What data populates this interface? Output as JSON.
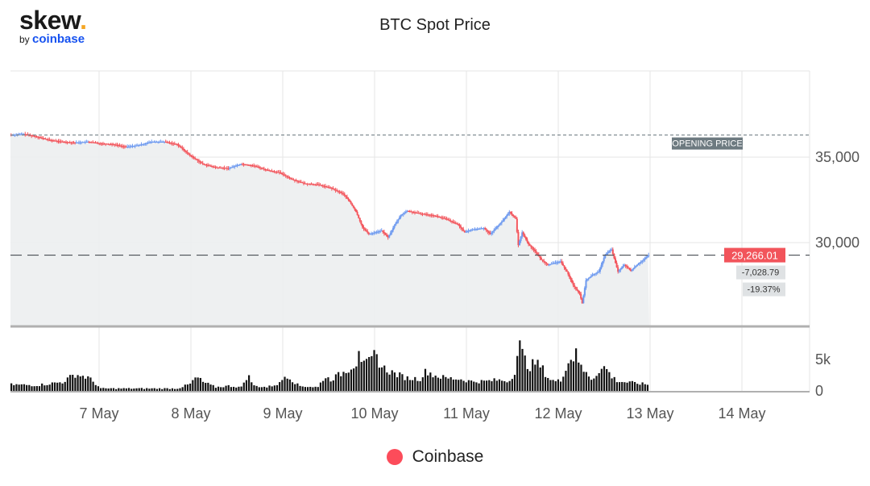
{
  "logo": {
    "main": "skew",
    "dot": ".",
    "by": "by",
    "brand": "coinbase"
  },
  "chart_data": {
    "type": "candlestick",
    "title": "BTC Spot Price",
    "x_labels": [
      "7 May",
      "8 May",
      "9 May",
      "10 May",
      "11 May",
      "12 May",
      "13 May",
      "14 May"
    ],
    "y_ticks": [
      30000,
      35000
    ],
    "y_tick_labels": [
      "30,000",
      "35,000"
    ],
    "ylim": [
      25000,
      40000
    ],
    "volume_tick_labels": [
      "5k",
      "0"
    ],
    "grid": true,
    "opening_price_label": "OPENING PRICE",
    "opening_price": 36295,
    "last_price": 29266.01,
    "last_price_label": "29,266.01",
    "change_label": "-7,028.79",
    "change_pct_label": "-19.37%",
    "legend_position": "bottom-center",
    "price_anchors": [
      [
        0,
        36300
      ],
      [
        10,
        36350
      ],
      [
        20,
        36200
      ],
      [
        30,
        36000
      ],
      [
        40,
        35900
      ],
      [
        50,
        35850
      ],
      [
        60,
        35900
      ],
      [
        70,
        35800
      ],
      [
        80,
        35750
      ],
      [
        90,
        35600
      ],
      [
        100,
        35700
      ],
      [
        110,
        35900
      ],
      [
        120,
        35900
      ],
      [
        130,
        35750
      ],
      [
        140,
        35100
      ],
      [
        150,
        34600
      ],
      [
        160,
        34400
      ],
      [
        170,
        34350
      ],
      [
        180,
        34600
      ],
      [
        190,
        34500
      ],
      [
        200,
        34250
      ],
      [
        210,
        34100
      ],
      [
        220,
        33700
      ],
      [
        230,
        33450
      ],
      [
        240,
        33400
      ],
      [
        250,
        33200
      ],
      [
        260,
        32850
      ],
      [
        265,
        32400
      ],
      [
        270,
        31800
      ],
      [
        275,
        30900
      ],
      [
        280,
        30500
      ],
      [
        290,
        30700
      ],
      [
        295,
        30300
      ],
      [
        300,
        31000
      ],
      [
        305,
        31600
      ],
      [
        310,
        31850
      ],
      [
        320,
        31700
      ],
      [
        330,
        31600
      ],
      [
        340,
        31400
      ],
      [
        350,
        31050
      ],
      [
        355,
        30600
      ],
      [
        360,
        30750
      ],
      [
        370,
        30850
      ],
      [
        375,
        30500
      ],
      [
        385,
        31300
      ],
      [
        390,
        31800
      ],
      [
        395,
        31400
      ],
      [
        397,
        29850
      ],
      [
        400,
        30600
      ],
      [
        405,
        29900
      ],
      [
        410,
        29500
      ],
      [
        415,
        29000
      ],
      [
        420,
        28700
      ],
      [
        425,
        28800
      ],
      [
        430,
        28900
      ],
      [
        435,
        28300
      ],
      [
        440,
        27500
      ],
      [
        445,
        27000
      ],
      [
        447,
        26450
      ],
      [
        450,
        27800
      ],
      [
        455,
        28100
      ],
      [
        460,
        28300
      ],
      [
        465,
        29300
      ],
      [
        470,
        29600
      ],
      [
        475,
        28300
      ],
      [
        480,
        28700
      ],
      [
        485,
        28350
      ],
      [
        490,
        28700
      ],
      [
        495,
        29000
      ],
      [
        499,
        29266
      ]
    ],
    "volume_anchors": [
      [
        0,
        1100
      ],
      [
        20,
        1000
      ],
      [
        40,
        1500
      ],
      [
        50,
        2700
      ],
      [
        60,
        2200
      ],
      [
        65,
        1400
      ],
      [
        70,
        500
      ],
      [
        100,
        500
      ],
      [
        130,
        500
      ],
      [
        140,
        1200
      ],
      [
        145,
        2300
      ],
      [
        150,
        1500
      ],
      [
        160,
        700
      ],
      [
        170,
        900
      ],
      [
        180,
        700
      ],
      [
        185,
        2600
      ],
      [
        190,
        900
      ],
      [
        200,
        700
      ],
      [
        210,
        1300
      ],
      [
        215,
        2700
      ],
      [
        225,
        900
      ],
      [
        240,
        700
      ],
      [
        245,
        2300
      ],
      [
        250,
        1900
      ],
      [
        260,
        3000
      ],
      [
        270,
        4500
      ],
      [
        272,
        7200
      ],
      [
        275,
        4000
      ],
      [
        280,
        4500
      ],
      [
        285,
        5800
      ],
      [
        290,
        3800
      ],
      [
        300,
        2800
      ],
      [
        310,
        2100
      ],
      [
        320,
        2000
      ],
      [
        325,
        3300
      ],
      [
        330,
        2600
      ],
      [
        340,
        2100
      ],
      [
        350,
        2000
      ],
      [
        360,
        1600
      ],
      [
        370,
        1600
      ],
      [
        380,
        1800
      ],
      [
        390,
        1700
      ],
      [
        395,
        3600
      ],
      [
        397,
        7800
      ],
      [
        400,
        5800
      ],
      [
        405,
        3800
      ],
      [
        410,
        4500
      ],
      [
        415,
        3800
      ],
      [
        420,
        2200
      ],
      [
        425,
        1600
      ],
      [
        430,
        1700
      ],
      [
        435,
        4500
      ],
      [
        440,
        5200
      ],
      [
        442,
        7400
      ],
      [
        445,
        3800
      ],
      [
        450,
        2800
      ],
      [
        455,
        1900
      ],
      [
        460,
        3400
      ],
      [
        465,
        3800
      ],
      [
        470,
        2300
      ],
      [
        475,
        1600
      ],
      [
        480,
        1500
      ],
      [
        485,
        1400
      ],
      [
        490,
        1300
      ],
      [
        499,
        1100
      ]
    ]
  },
  "legend": {
    "label": "Coinbase",
    "color": "#fc4c5a"
  },
  "colors": {
    "up": "#6e9af0",
    "down": "#f2545b",
    "volume": "#111111",
    "grid": "#e6e6e6",
    "axis": "#b0b0b0",
    "badge_gray": "#dfe2e4",
    "badge_dark": "#6d7a80"
  }
}
